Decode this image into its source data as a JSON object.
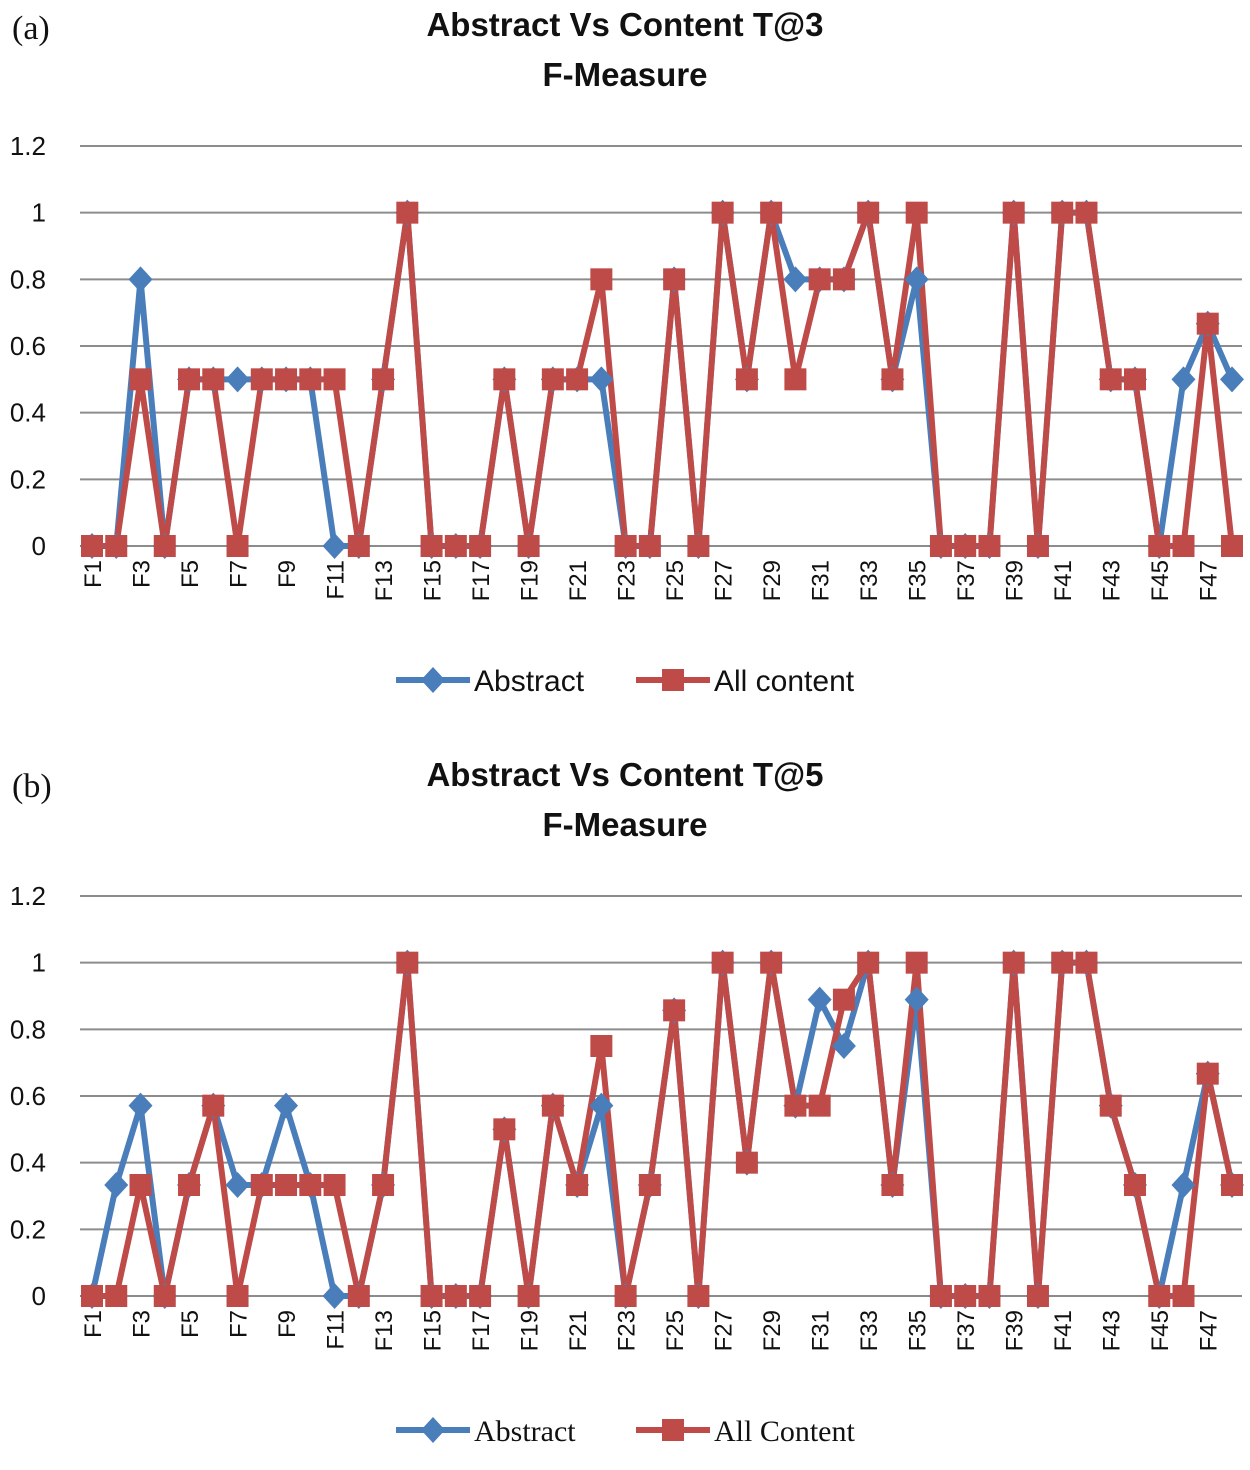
{
  "chart_data": [
    {
      "panel_label": "(a)",
      "type": "line",
      "title_line1": "Abstract Vs Content T@3",
      "title_line2": "F-Measure",
      "xlabel": "",
      "ylabel": "",
      "ylim": [
        0,
        1.2
      ],
      "yticks": [
        "0",
        "0.2",
        "0.4",
        "0.6",
        "0.8",
        "1",
        "1.2"
      ],
      "grid": true,
      "legend_position": "bottom-center",
      "categories": [
        "F1",
        "F2",
        "F3",
        "F4",
        "F5",
        "F6",
        "F7",
        "F8",
        "F9",
        "F10",
        "F11",
        "F12",
        "F13",
        "F14",
        "F15",
        "F16",
        "F17",
        "F18",
        "F19",
        "F20",
        "F21",
        "F22",
        "F23",
        "F24",
        "F25",
        "F26",
        "F27",
        "F28",
        "F29",
        "F30",
        "F31",
        "F32",
        "F33",
        "F34",
        "F35",
        "F36",
        "F37",
        "F38",
        "F39",
        "F40",
        "F41",
        "F42",
        "F43",
        "F44",
        "F45",
        "F46",
        "F47",
        "F48"
      ],
      "x_tick_labels": [
        "F1",
        "F3",
        "F5",
        "F7",
        "F9",
        "F11",
        "F13",
        "F15",
        "F17",
        "F19",
        "F21",
        "F23",
        "F25",
        "F27",
        "F29",
        "F31",
        "F33",
        "F35",
        "F37",
        "F39",
        "F41",
        "F43",
        "F45",
        "F47"
      ],
      "series": [
        {
          "name": "Abstract",
          "color": "#4a7ebb",
          "marker": "diamond",
          "values": [
            0,
            0,
            0.8,
            0,
            0.5,
            0.5,
            0.5,
            0.5,
            0.5,
            0.5,
            0,
            0,
            0.5,
            1,
            0,
            0,
            0,
            0.5,
            0,
            0.5,
            0.5,
            0.5,
            0,
            0,
            0.8,
            0,
            1,
            0.5,
            1,
            0.8,
            0.8,
            0.8,
            1,
            0.5,
            0.8,
            0,
            0,
            0,
            1,
            0,
            1,
            1,
            0.5,
            0.5,
            0,
            0.5,
            0.667,
            0.5
          ]
        },
        {
          "name": "All content",
          "color": "#be4b48",
          "marker": "square",
          "values": [
            0,
            0,
            0.5,
            0,
            0.5,
            0.5,
            0,
            0.5,
            0.5,
            0.5,
            0.5,
            0,
            0.5,
            1,
            0,
            0,
            0,
            0.5,
            0,
            0.5,
            0.5,
            0.8,
            0,
            0,
            0.8,
            0,
            1,
            0.5,
            1,
            0.5,
            0.8,
            0.8,
            1,
            0.5,
            1,
            0,
            0,
            0,
            1,
            0,
            1,
            1,
            0.5,
            0.5,
            0,
            0,
            0.667,
            0
          ]
        }
      ]
    },
    {
      "panel_label": "(b)",
      "type": "line",
      "title_line1": "Abstract Vs Content T@5",
      "title_line2": "F-Measure",
      "xlabel": "",
      "ylabel": "",
      "ylim": [
        0,
        1.2
      ],
      "yticks": [
        "0",
        "0.2",
        "0.4",
        "0.6",
        "0.8",
        "1",
        "1.2"
      ],
      "grid": true,
      "legend_position": "bottom-center",
      "categories": [
        "F1",
        "F2",
        "F3",
        "F4",
        "F5",
        "F6",
        "F7",
        "F8",
        "F9",
        "F10",
        "F11",
        "F12",
        "F13",
        "F14",
        "F15",
        "F16",
        "F17",
        "F18",
        "F19",
        "F20",
        "F21",
        "F22",
        "F23",
        "F24",
        "F25",
        "F26",
        "F27",
        "F28",
        "F29",
        "F30",
        "F31",
        "F32",
        "F33",
        "F34",
        "F35",
        "F36",
        "F37",
        "F38",
        "F39",
        "F40",
        "F41",
        "F42",
        "F43",
        "F44",
        "F45",
        "F46",
        "F47",
        "F48"
      ],
      "x_tick_labels": [
        "F1",
        "F3",
        "F5",
        "F7",
        "F9",
        "F11",
        "F13",
        "F15",
        "F17",
        "F19",
        "F21",
        "F23",
        "F25",
        "F27",
        "F29",
        "F31",
        "F33",
        "F35",
        "F37",
        "F39",
        "F41",
        "F43",
        "F45",
        "F47"
      ],
      "series": [
        {
          "name": "Abstract",
          "color": "#4a7ebb",
          "marker": "diamond",
          "values": [
            0,
            0.333,
            0.571,
            0,
            0.333,
            0.571,
            0.333,
            0.333,
            0.571,
            0.333,
            0,
            0,
            0.333,
            1,
            0,
            0,
            0,
            0.5,
            0,
            0.571,
            0.333,
            0.571,
            0,
            0.333,
            0.857,
            0,
            1,
            0.4,
            1,
            0.571,
            0.889,
            0.75,
            1,
            0.333,
            0.889,
            0,
            0,
            0,
            1,
            0,
            1,
            1,
            0.571,
            0.333,
            0,
            0.333,
            0.667,
            0.333
          ]
        },
        {
          "name": "All Content",
          "color": "#be4b48",
          "marker": "square",
          "values": [
            0,
            0,
            0.333,
            0,
            0.333,
            0.571,
            0,
            0.333,
            0.333,
            0.333,
            0.333,
            0,
            0.333,
            1,
            0,
            0,
            0,
            0.5,
            0,
            0.571,
            0.333,
            0.75,
            0,
            0.333,
            0.857,
            0,
            1,
            0.4,
            1,
            0.571,
            0.571,
            0.889,
            1,
            0.333,
            1,
            0,
            0,
            0,
            1,
            0,
            1,
            1,
            0.571,
            0.333,
            0,
            0,
            0.667,
            0.333
          ]
        }
      ]
    }
  ]
}
